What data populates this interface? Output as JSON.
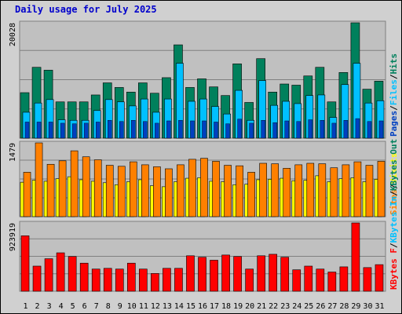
{
  "title": "Daily usage for July 2025",
  "colors": {
    "frame": "#d0d0d0",
    "panel": "#c0c0c0",
    "hits": "#00805c",
    "files": "#00c0ff",
    "pages": "#0040c0",
    "visits": "#ffff00",
    "sites": "#ff8000",
    "kbytes": "#ff0000",
    "weekend": "#007f40",
    "weekday": "#000000",
    "divider": "#000000"
  },
  "chart_data": [
    {
      "type": "bar",
      "panel": "traffic",
      "categories": [
        "1",
        "2",
        "3",
        "4",
        "5",
        "6",
        "7",
        "8",
        "9",
        "10",
        "11",
        "12",
        "13",
        "14",
        "15",
        "16",
        "17",
        "18",
        "19",
        "20",
        "21",
        "22",
        "23",
        "24",
        "25",
        "26",
        "27",
        "28",
        "29",
        "30",
        "31"
      ],
      "weekend_days": [
        "5",
        "6",
        "12",
        "13",
        "19",
        "20",
        "26",
        "27"
      ],
      "y_max_label": "20028",
      "ylim": [
        0,
        20028
      ],
      "series": [
        {
          "name": "Hits",
          "values": [
            7900,
            12300,
            11800,
            6300,
            6300,
            6300,
            7500,
            9600,
            8800,
            8000,
            9600,
            7800,
            10500,
            16200,
            8800,
            10300,
            8900,
            7400,
            12900,
            6200,
            13800,
            8000,
            9400,
            9200,
            10800,
            12300,
            6300,
            11400,
            20028,
            8500,
            9900
          ]
        },
        {
          "name": "Files",
          "values": [
            4500,
            6100,
            6700,
            3200,
            3100,
            3100,
            4800,
            6700,
            6300,
            5600,
            6800,
            4500,
            6800,
            13000,
            6400,
            6800,
            5500,
            4200,
            8300,
            3100,
            10000,
            5700,
            6400,
            6000,
            7400,
            7500,
            3600,
            9300,
            13000,
            6100,
            6500
          ]
        },
        {
          "name": "Pages",
          "values": [
            2800,
            2800,
            2800,
            2600,
            2500,
            2600,
            2800,
            3100,
            2900,
            3100,
            2900,
            2600,
            3000,
            3100,
            3000,
            3000,
            2800,
            2500,
            3300,
            2600,
            3100,
            2700,
            3000,
            2900,
            3200,
            3100,
            2600,
            3100,
            3400,
            2900,
            3000
          ]
        }
      ],
      "side_labels": [
        "Pages",
        "Files",
        "Hits"
      ]
    },
    {
      "type": "bar",
      "panel": "visitors",
      "categories": [
        "1",
        "2",
        "3",
        "4",
        "5",
        "6",
        "7",
        "8",
        "9",
        "10",
        "11",
        "12",
        "13",
        "14",
        "15",
        "16",
        "17",
        "18",
        "19",
        "20",
        "21",
        "22",
        "23",
        "24",
        "25",
        "26",
        "27",
        "28",
        "29",
        "30",
        "31"
      ],
      "y_max_label": "1479",
      "ylim": [
        0,
        1479
      ],
      "series": [
        {
          "name": "Sites",
          "values": [
            890,
            1479,
            1050,
            1120,
            1320,
            1200,
            1140,
            1030,
            1010,
            1100,
            1040,
            1000,
            960,
            1040,
            1150,
            1170,
            1110,
            1030,
            1020,
            890,
            1070,
            1060,
            970,
            1040,
            1070,
            1060,
            980,
            1040,
            1100,
            1030,
            1110
          ]
        },
        {
          "name": "Visits",
          "values": [
            690,
            730,
            710,
            760,
            800,
            740,
            710,
            680,
            640,
            700,
            740,
            620,
            600,
            700,
            770,
            780,
            710,
            700,
            640,
            650,
            740,
            750,
            770,
            720,
            730,
            820,
            700,
            760,
            780,
            700,
            750
          ]
        }
      ],
      "side_labels": [
        "Sites",
        "Visits"
      ]
    },
    {
      "type": "bar",
      "panel": "kbytes",
      "categories": [
        "1",
        "2",
        "3",
        "4",
        "5",
        "6",
        "7",
        "8",
        "9",
        "10",
        "11",
        "12",
        "13",
        "14",
        "15",
        "16",
        "17",
        "18",
        "19",
        "20",
        "21",
        "22",
        "23",
        "24",
        "25",
        "26",
        "27",
        "28",
        "29",
        "30",
        "31"
      ],
      "y_max_label": "923919",
      "ylim": [
        0,
        923919
      ],
      "series": [
        {
          "name": "KBytes",
          "values": [
            750000,
            340000,
            440000,
            520000,
            470000,
            380000,
            300000,
            310000,
            300000,
            380000,
            300000,
            240000,
            310000,
            310000,
            480000,
            460000,
            420000,
            490000,
            470000,
            300000,
            480000,
            500000,
            460000,
            290000,
            340000,
            300000,
            260000,
            330000,
            923919,
            320000,
            360000
          ]
        }
      ],
      "side_labels": [
        "KBytes F",
        "KBytes In",
        "KBytes Out"
      ]
    }
  ]
}
